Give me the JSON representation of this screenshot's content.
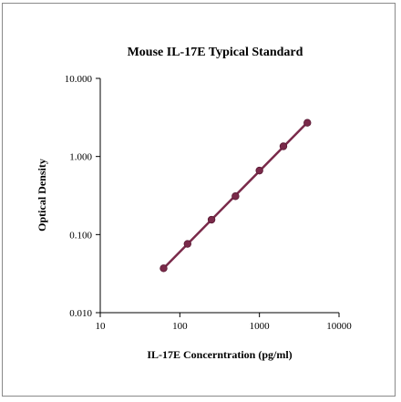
{
  "chart_data": {
    "type": "scatter",
    "title": "Mouse IL-17E Typical Standard",
    "xlabel": "IL-17E Concerntration (pg/ml)",
    "ylabel": "Optical Density",
    "x_scale": "log",
    "y_scale": "log",
    "xlim": [
      10,
      10000
    ],
    "ylim": [
      0.01,
      10
    ],
    "x_ticks": [
      {
        "value": 10,
        "label": "10"
      },
      {
        "value": 100,
        "label": "100"
      },
      {
        "value": 1000,
        "label": "1000"
      },
      {
        "value": 10000,
        "label": "10000"
      }
    ],
    "y_ticks": [
      {
        "value": 0.01,
        "label": "0.010"
      },
      {
        "value": 0.1,
        "label": "0.100"
      },
      {
        "value": 1,
        "label": "1.000"
      },
      {
        "value": 10,
        "label": "10.000"
      }
    ],
    "grid": false,
    "legend": "none",
    "trendline": true,
    "color": "#7a2a4a",
    "series": [
      {
        "x": [
          62.5,
          125,
          250,
          500,
          1000,
          2000,
          4000
        ],
        "y": [
          0.037,
          0.076,
          0.155,
          0.31,
          0.66,
          1.35,
          2.7
        ]
      }
    ]
  }
}
